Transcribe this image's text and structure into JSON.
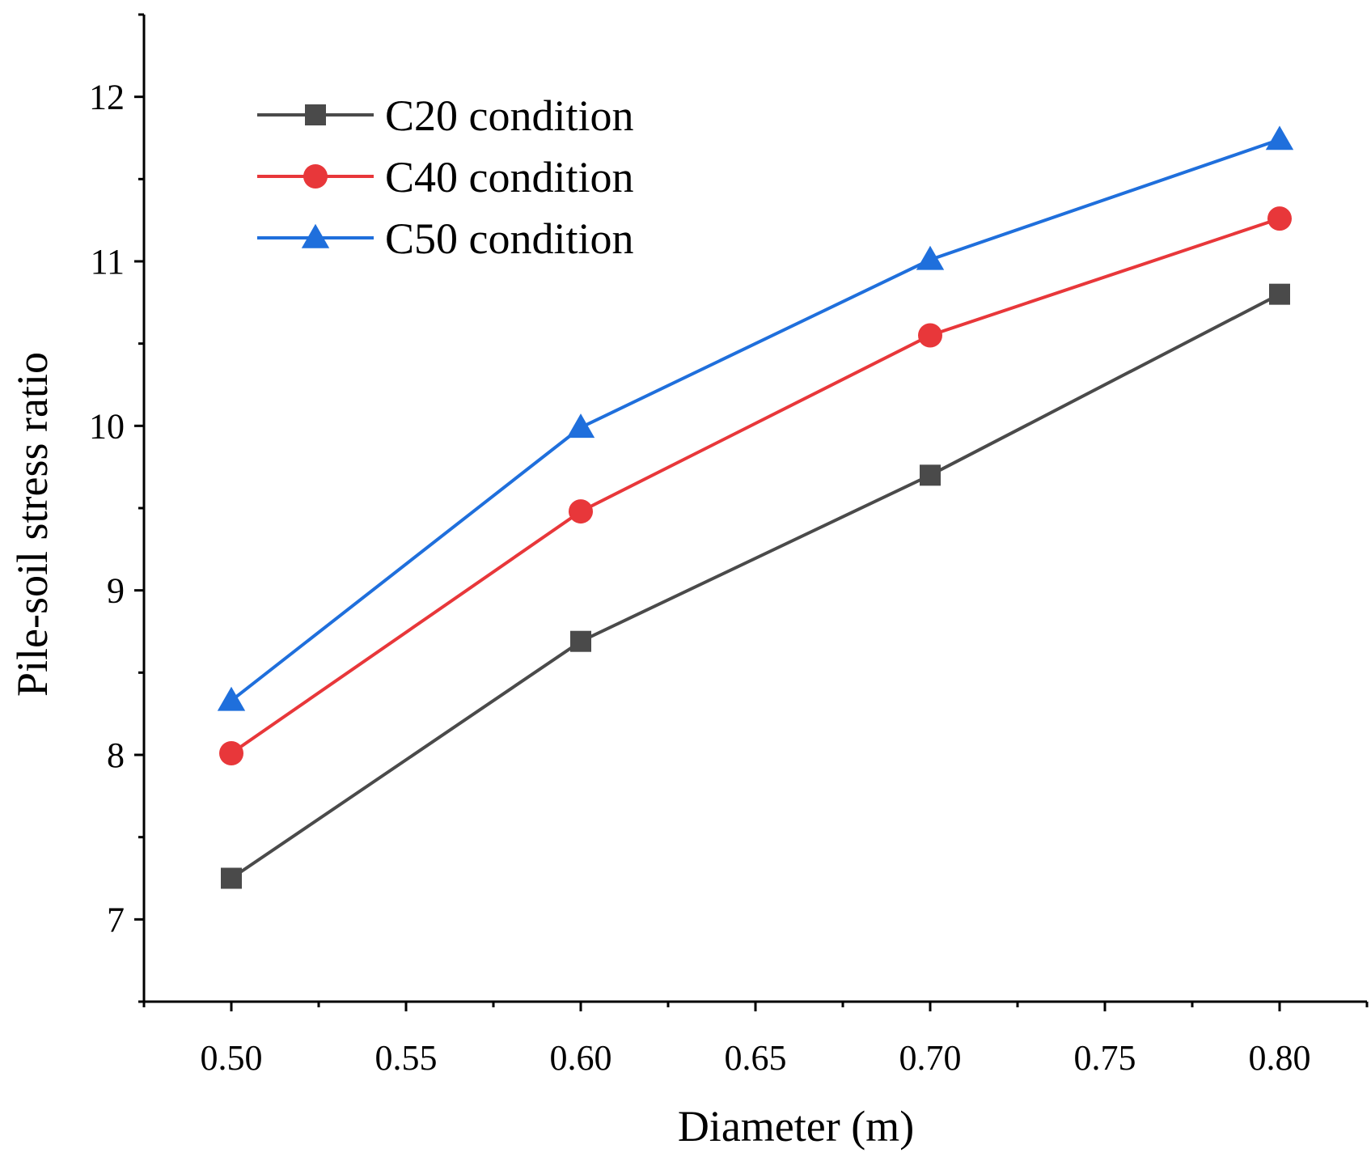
{
  "chart_data": {
    "type": "line",
    "title": "",
    "xlabel": "Diameter (m)",
    "ylabel": "Pile-soil stress ratio",
    "x": [
      0.5,
      0.6,
      0.7,
      0.8
    ],
    "xlim": [
      0.475,
      0.825
    ],
    "ylim": [
      6.5,
      12.5
    ],
    "xticks": [
      0.5,
      0.55,
      0.6,
      0.65,
      0.7,
      0.75,
      0.8
    ],
    "xtick_labels": [
      "0.50",
      "0.55",
      "0.60",
      "0.65",
      "0.70",
      "0.75",
      "0.80"
    ],
    "yticks": [
      7,
      8,
      9,
      10,
      11,
      12
    ],
    "ytick_labels": [
      "7",
      "8",
      "9",
      "10",
      "11",
      "12"
    ],
    "grid": false,
    "legend_position": "top-left",
    "series": [
      {
        "name": "C20 condition",
        "marker": "square",
        "color": "#4a4a4a",
        "values": [
          7.25,
          8.69,
          9.7,
          10.8
        ]
      },
      {
        "name": "C40 condition",
        "marker": "circle",
        "color": "#e8373a",
        "values": [
          8.01,
          9.48,
          10.55,
          11.26
        ]
      },
      {
        "name": "C50 condition",
        "marker": "triangle",
        "color": "#1f6fdc",
        "values": [
          8.33,
          9.99,
          11.01,
          11.74
        ]
      }
    ]
  }
}
